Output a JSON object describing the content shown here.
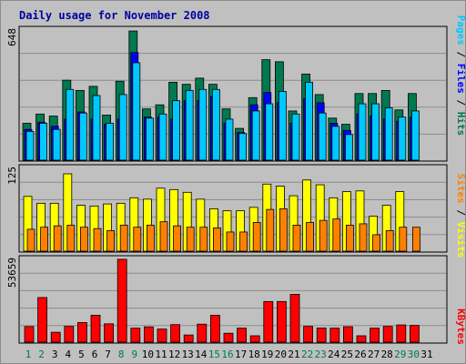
{
  "colors": {
    "background": "#c0c0c0",
    "hits": "#007850",
    "files": "#0000ff",
    "pages": "#00c8ff",
    "visits": "#ffff00",
    "sites": "#ff8000",
    "kbytes": "#ff0000",
    "title": "#0000a0",
    "weekend_day": "#007850",
    "weekday": "#000000",
    "separator": "#000000"
  },
  "chart_data": {
    "type": "bar",
    "title": "Daily usage for November 2008",
    "categories": [
      "1",
      "2",
      "3",
      "4",
      "5",
      "6",
      "7",
      "8",
      "9",
      "10",
      "11",
      "12",
      "13",
      "14",
      "15",
      "16",
      "17",
      "18",
      "19",
      "20",
      "21",
      "22",
      "23",
      "24",
      "25",
      "26",
      "27",
      "28",
      "29",
      "30",
      "31"
    ],
    "weekend_days": [
      "1",
      "2",
      "8",
      "9",
      "15",
      "16",
      "22",
      "23",
      "29",
      "30"
    ],
    "panels": [
      {
        "id": "hits-files-pages",
        "ymax_label": "648",
        "ylim": [
          0,
          648
        ],
        "grid": true,
        "series": [
          {
            "name": "Hits",
            "values": [
              180,
              225,
              215,
              390,
              340,
              360,
              220,
              385,
              630,
              250,
              270,
              380,
              370,
              400,
              370,
              250,
              155,
              305,
              490,
              480,
              240,
              420,
              320,
              205,
              175,
              325,
              325,
              340,
              245,
              325,
              0
            ]
          },
          {
            "name": "Files",
            "values": [
              150,
              185,
              165,
              200,
              235,
              200,
              175,
              200,
              525,
              210,
              210,
              200,
              290,
              290,
              310,
              180,
              135,
              270,
              330,
              280,
              180,
              300,
              280,
              180,
              145,
              225,
              215,
              200,
              190,
              210,
              0
            ]
          },
          {
            "name": "Pages",
            "values": [
              140,
              180,
              150,
              345,
              230,
              315,
              180,
              320,
              475,
              205,
              225,
              290,
              340,
              345,
              345,
              200,
              130,
              240,
              275,
              335,
              225,
              380,
              230,
              165,
              125,
              275,
              275,
              255,
              210,
              240,
              0
            ]
          }
        ]
      },
      {
        "id": "visits-sites",
        "ymax_label": "125",
        "ylim": [
          0,
          125
        ],
        "grid": true,
        "series": [
          {
            "name": "Visits",
            "values": [
              80,
              70,
              70,
              113,
              67,
              66,
              69,
              70,
              78,
              76,
              92,
              90,
              86,
              76,
              62,
              59,
              59,
              64,
              98,
              95,
              81,
              104,
              97,
              78,
              87,
              88,
              51,
              67,
              87,
              0,
              0
            ]
          },
          {
            "name": "Sites",
            "values": [
              32,
              35,
              37,
              38,
              35,
              33,
              30,
              38,
              35,
              38,
              43,
              37,
              35,
              35,
              34,
              28,
              28,
              42,
              61,
              62,
              38,
              42,
              45,
              47,
              38,
              40,
              24,
              30,
              35,
              35,
              0
            ]
          }
        ]
      },
      {
        "id": "kbytes",
        "ymax_label": "53659",
        "ylim": [
          0,
          53659
        ],
        "grid": true,
        "series": [
          {
            "name": "KBytes",
            "values": [
              9800,
              28000,
              6200,
              9900,
              12300,
              16900,
              11500,
              52000,
              8800,
              9600,
              8200,
              11000,
              4500,
              11300,
              16900,
              5600,
              8800,
              4000,
              25500,
              25500,
              30000,
              9900,
              8900,
              8800,
              9700,
              4000,
              8800,
              9900,
              10800,
              10500,
              0
            ]
          }
        ]
      }
    ]
  }
}
